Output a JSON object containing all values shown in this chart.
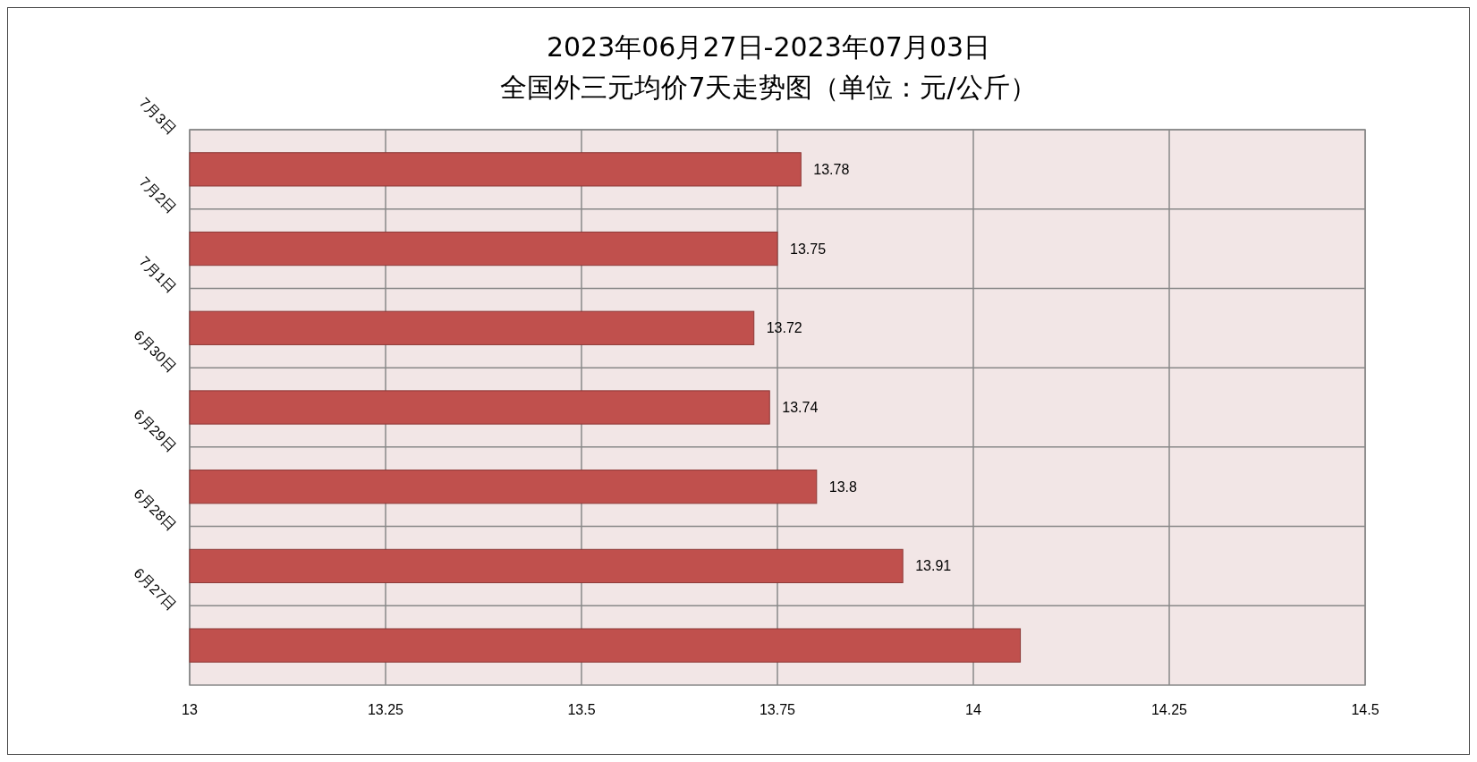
{
  "chart_data": {
    "type": "bar",
    "orientation": "horizontal",
    "title": "2023年06月27日-2023年07月03日",
    "subtitle": "全国外三元均价7天走势图（单位：元/公斤）",
    "categories": [
      "7月3日",
      "7月2日",
      "7月1日",
      "6月30日",
      "6月29日",
      "6月28日",
      "6月27日"
    ],
    "values": [
      13.78,
      13.75,
      13.72,
      13.74,
      13.8,
      13.91,
      14.06
    ],
    "value_labels": [
      "13.78",
      "13.75",
      "13.72",
      "13.74",
      "13.8",
      "13.91",
      null
    ],
    "color": "#c0504d",
    "xlim": [
      13,
      14.5
    ],
    "xticks": [
      13,
      13.25,
      13.5,
      13.75,
      14,
      14.25,
      14.5
    ],
    "grid": true
  }
}
